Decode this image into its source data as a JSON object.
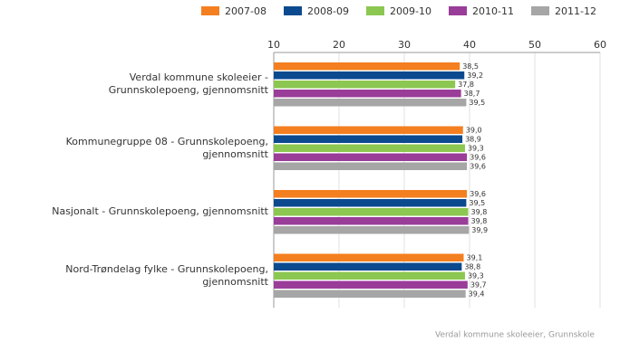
{
  "chart_data": {
    "type": "bar",
    "orientation": "horizontal",
    "categories": [
      "Verdal kommune skoleeier - Grunnskolepoeng, gjennomsnitt",
      "Kommunegruppe 08 - Grunnskolepoeng, gjennomsnitt",
      "Nasjonalt - Grunnskolepoeng, gjennomsnitt",
      "Nord-Trøndelag fylke - Grunnskolepoeng, gjennomsnitt"
    ],
    "series": [
      {
        "name": "2007-08",
        "color": "#f47f20",
        "values": [
          38.5,
          39.0,
          39.6,
          39.1
        ],
        "value_labels": [
          "38,5",
          "39,0",
          "39,6",
          "39,1"
        ]
      },
      {
        "name": "2008-09",
        "color": "#0b4a8f",
        "values": [
          39.2,
          38.9,
          39.5,
          38.8
        ],
        "value_labels": [
          "39,2",
          "38,9",
          "39,5",
          "38,8"
        ]
      },
      {
        "name": "2009-10",
        "color": "#8cc751",
        "values": [
          37.8,
          39.3,
          39.8,
          39.3
        ],
        "value_labels": [
          "37,8",
          "39,3",
          "39,8",
          "39,3"
        ]
      },
      {
        "name": "2010-11",
        "color": "#993d99",
        "values": [
          38.7,
          39.6,
          39.8,
          39.7
        ],
        "value_labels": [
          "38,7",
          "39,6",
          "39,8",
          "39,7"
        ]
      },
      {
        "name": "2011-12",
        "color": "#a6a6a6",
        "values": [
          39.5,
          39.6,
          39.9,
          39.4
        ],
        "value_labels": [
          "39,5",
          "39,6",
          "39,9",
          "39,4"
        ]
      }
    ],
    "xlim": [
      10,
      60
    ],
    "xticks": [
      10,
      20,
      30,
      40,
      50,
      60
    ],
    "grid": true,
    "source": "Verdal kommune skoleeier, Grunnskole"
  }
}
